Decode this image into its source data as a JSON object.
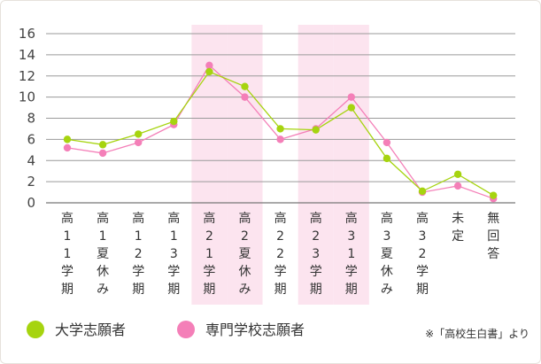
{
  "chart_data": {
    "type": "line",
    "ylim": [
      0,
      16
    ],
    "yticks": [
      0,
      2,
      4,
      6,
      8,
      10,
      12,
      14,
      16
    ],
    "grid": true,
    "legend_position": "bottom-left",
    "categories": [
      "高１１学期",
      "高１夏休み",
      "高１２学期",
      "高１３学期",
      "高２１学期",
      "高２夏休み",
      "高２２学期",
      "高２３学期",
      "高３１学期",
      "高３夏休み",
      "高３２学期",
      "未定",
      "無回答"
    ],
    "category_labels": [
      [
        "高",
        "1",
        "1",
        "学",
        "期"
      ],
      [
        "高",
        "1",
        "夏",
        "休",
        "み"
      ],
      [
        "高",
        "1",
        "2",
        "学",
        "期"
      ],
      [
        "高",
        "1",
        "3",
        "学",
        "期"
      ],
      [
        "高",
        "2",
        "1",
        "学",
        "期"
      ],
      [
        "高",
        "2",
        "夏",
        "休",
        "み"
      ],
      [
        "高",
        "2",
        "2",
        "学",
        "期"
      ],
      [
        "高",
        "2",
        "3",
        "学",
        "期"
      ],
      [
        "高",
        "3",
        "1",
        "学",
        "期"
      ],
      [
        "高",
        "3",
        "夏",
        "休",
        "み"
      ],
      [
        "高",
        "3",
        "2",
        "学",
        "期"
      ],
      [
        "未",
        "定"
      ],
      [
        "無",
        "回",
        "答"
      ]
    ],
    "highlight_categories": [
      4,
      5,
      7,
      8
    ],
    "highlight_color": "#fce4ef",
    "series": [
      {
        "name": "大学志願者",
        "color": "#a6d40f",
        "values": [
          6.0,
          5.5,
          6.5,
          7.7,
          12.4,
          11.0,
          7.0,
          6.9,
          9.0,
          4.2,
          1.1,
          2.7,
          0.7
        ]
      },
      {
        "name": "専門学校志願者",
        "color": "#f47fb8",
        "values": [
          5.2,
          4.7,
          5.7,
          7.4,
          13.0,
          10.0,
          6.0,
          7.0,
          10.0,
          5.7,
          1.0,
          1.6,
          0.4
        ]
      }
    ]
  },
  "source_note": "※「高校生白書」より"
}
